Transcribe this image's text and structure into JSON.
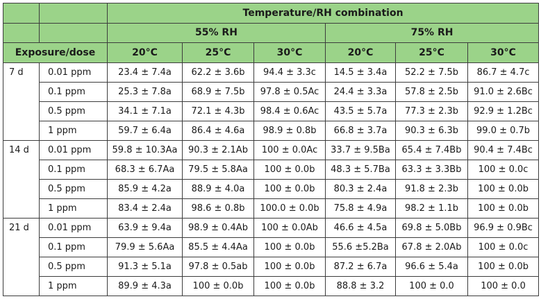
{
  "header": {
    "top": "Temperature/RH combination",
    "rh_groups": [
      "55% RH",
      "75% RH"
    ],
    "row_label": "Exposure/dose",
    "temps": [
      "20°C",
      "25°C",
      "30°C",
      "20°C",
      "25°C",
      "30°C"
    ]
  },
  "groups": [
    {
      "period": "7 d",
      "rows": [
        {
          "dose": "0.01 ppm",
          "values": [
            "23.4 ± 7.4a",
            "62.2 ± 3.6b",
            "94.4 ± 3.3c",
            "14.5 ± 3.4a",
            "52.2 ± 7.5b",
            "86.7 ± 4.7c"
          ]
        },
        {
          "dose": "0.1 ppm",
          "values": [
            "25.3 ± 7.8a",
            "68.9 ± 7.5b",
            "97.8 ± 0.5Ac",
            "24.4 ± 3.3a",
            "57.8 ± 2.5b",
            "91.0 ± 2.6Bc"
          ]
        },
        {
          "dose": "0.5 ppm",
          "values": [
            "34.1 ± 7.1a",
            "72.1 ± 4.3b",
            "98.4 ± 0.6Ac",
            "43.5 ± 5.7a",
            "77.3 ± 2.3b",
            "92.9 ± 1.2Bc"
          ]
        },
        {
          "dose": "1 ppm",
          "values": [
            "59.7 ± 6.4a",
            "86.4 ± 4.6a",
            "98.9 ± 0.8b",
            "66.8 ± 3.7a",
            "90.3 ± 6.3b",
            "99.0 ± 0.7b"
          ]
        }
      ]
    },
    {
      "period": "14 d",
      "rows": [
        {
          "dose": "0.01 ppm",
          "values": [
            "59.8 ± 10.3Aa",
            "90.3 ± 2.1Ab",
            "100 ± 0.0Ac",
            "33.7 ± 9.5Ba",
            "65.4 ± 7.4Bb",
            "90.4 ± 7.4Bc"
          ]
        },
        {
          "dose": "0.1 ppm",
          "values": [
            "68.3 ± 6.7Aa",
            "79.5 ± 5.8Aa",
            "100 ± 0.0b",
            "48.3 ± 5.7Ba",
            "63.3 ± 3.3Bb",
            "100 ± 0.0c"
          ]
        },
        {
          "dose": "0.5 ppm",
          "values": [
            "85.9 ± 4.2a",
            "88.9 ± 4.0a",
            "100 ± 0.0b",
            "80.3 ± 2.4a",
            "91.8 ± 2.3b",
            "100 ± 0.0b"
          ]
        },
        {
          "dose": "1 ppm",
          "values": [
            "83.4 ± 2.4a",
            "98.6 ± 0.8b",
            "100.0 ± 0.0b",
            "75.8 ± 4.9a",
            "98.2 ± 1.1b",
            "100 ± 0.0b"
          ]
        }
      ]
    },
    {
      "period": "21 d",
      "rows": [
        {
          "dose": "0.01 ppm",
          "values": [
            "63.9 ± 9.4a",
            "98.9 ± 0.4Ab",
            "100 ± 0.0Ab",
            "46.6 ± 4.5a",
            "69.8 ± 5.0Bb",
            "96.9 ± 0.9Bc"
          ]
        },
        {
          "dose": "0.1 ppm",
          "values": [
            "79.9 ± 5.6Aa",
            "85.5 ± 4.4Aa",
            "100 ± 0.0b",
            "55.6 ±5.2Ba",
            "67.8 ± 2.0Ab",
            "100 ± 0.0c"
          ]
        },
        {
          "dose": "0.5 ppm",
          "values": [
            "91.3 ± 5.1a",
            "97.8 ± 0.5ab",
            "100 ± 0.0b",
            "87.2 ± 6.7a",
            "96.6 ± 5.4a",
            "100 ± 0.0b"
          ]
        },
        {
          "dose": "1 ppm",
          "values": [
            "89.9 ± 4.3a",
            "100 ± 0.0b",
            "100 ± 0.0b",
            "88.8 ± 3.2",
            "100 ± 0.0",
            "100 ± 0.0"
          ]
        }
      ]
    }
  ]
}
